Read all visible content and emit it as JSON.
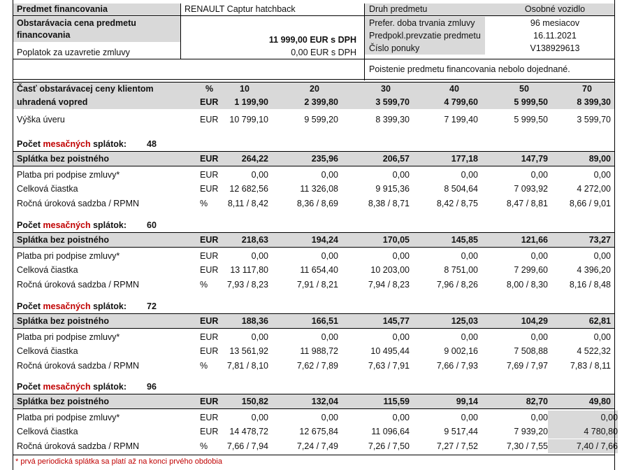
{
  "header": {
    "predmet_label": "Predmet financovania",
    "predmet_value": "RENAULT Captur hatchback",
    "druh_label": "Druh predmetu",
    "druh_value": "Osobné vozidlo",
    "cena_label_1": "Obstarávacia cena predmetu",
    "cena_label_2": "financovania",
    "cena_value": "11 999,00 EUR s DPH",
    "poplatok_label": "Poplatok za uzavretie zmluvy",
    "poplatok_value": "0,00 EUR s DPH",
    "doba_label": "Prefer. doba trvania zmluvy",
    "doba_value": "96 mesiacov",
    "prevzatie_label": "Predpokl.prevzatie predmetu",
    "prevzatie_value": "16.11.2021",
    "ponuka_label": "Číslo ponuky",
    "ponuka_value": "V138929613",
    "poistenie_note": "Poistenie predmetu financovania nebolo dojednané."
  },
  "upfront": {
    "label_1": "Časť obstarávacej ceny klientom",
    "label_2": "uhradená vopred",
    "unit_pct": "%",
    "unit_eur": "EUR",
    "percents": [
      "10",
      "20",
      "30",
      "40",
      "50",
      "70"
    ],
    "amounts": [
      "1 199,90",
      "2 399,80",
      "3 599,70",
      "4 799,60",
      "5 999,50",
      "8 399,30"
    ]
  },
  "loan": {
    "label": "Výška úveru",
    "unit": "EUR",
    "values": [
      "10 799,10",
      "9 599,20",
      "8 399,30",
      "7 199,40",
      "5 999,50",
      "3 599,70"
    ]
  },
  "count_label_prefix": "Počet ",
  "count_label_red": "mesačných",
  "count_label_suffix": " splátok:",
  "sections": [
    {
      "count": "48",
      "splatka_label": "Splátka bez poistného",
      "splatka_unit": "EUR",
      "splatka": [
        "264,22",
        "235,96",
        "206,57",
        "177,18",
        "147,79",
        "89,00"
      ],
      "platba_label": "Platba pri podpise zmluvy*",
      "platba_unit": "EUR",
      "platba": [
        "0,00",
        "0,00",
        "0,00",
        "0,00",
        "0,00",
        "0,00"
      ],
      "celkova_label": "Celková čiastka",
      "celkova_unit": "EUR",
      "celkova": [
        "12 682,56",
        "11 326,08",
        "9 915,36",
        "8 504,64",
        "7 093,92",
        "4 272,00"
      ],
      "rpmn_label": "Ročná úroková sadzba / RPMN",
      "rpmn_unit": "%",
      "rpmn": [
        "8,11 / 8,42",
        "8,36 / 8,69",
        "8,38 / 8,71",
        "8,42 / 8,75",
        "8,47 / 8,81",
        "8,66 / 9,01"
      ]
    },
    {
      "count": "60",
      "splatka_label": "Splátka bez poistného",
      "splatka_unit": "EUR",
      "splatka": [
        "218,63",
        "194,24",
        "170,05",
        "145,85",
        "121,66",
        "73,27"
      ],
      "platba_label": "Platba pri podpise zmluvy*",
      "platba_unit": "EUR",
      "platba": [
        "0,00",
        "0,00",
        "0,00",
        "0,00",
        "0,00",
        "0,00"
      ],
      "celkova_label": "Celková čiastka",
      "celkova_unit": "EUR",
      "celkova": [
        "13 117,80",
        "11 654,40",
        "10 203,00",
        "8 751,00",
        "7 299,60",
        "4 396,20"
      ],
      "rpmn_label": "Ročná úroková sadzba / RPMN",
      "rpmn_unit": "%",
      "rpmn": [
        "7,93 / 8,23",
        "7,91 / 8,21",
        "7,94 / 8,23",
        "7,96 / 8,26",
        "8,00 / 8,30",
        "8,16 / 8,48"
      ]
    },
    {
      "count": "72",
      "splatka_label": "Splátka bez poistného",
      "splatka_unit": "EUR",
      "splatka": [
        "188,36",
        "166,51",
        "145,77",
        "125,03",
        "104,29",
        "62,81"
      ],
      "platba_label": "Platba pri podpise zmluvy*",
      "platba_unit": "EUR",
      "platba": [
        "0,00",
        "0,00",
        "0,00",
        "0,00",
        "0,00",
        "0,00"
      ],
      "celkova_label": "Celková čiastka",
      "celkova_unit": "EUR",
      "celkova": [
        "13 561,92",
        "11 988,72",
        "10 495,44",
        "9 002,16",
        "7 508,88",
        "4 522,32"
      ],
      "rpmn_label": "Ročná úroková sadzba / RPMN",
      "rpmn_unit": "%",
      "rpmn": [
        "7,81 / 8,10",
        "7,62 / 7,89",
        "7,63 / 7,91",
        "7,66 / 7,93",
        "7,69 / 7,97",
        "7,83 / 8,11"
      ]
    },
    {
      "count": "96",
      "splatka_label": "Splátka bez poistného",
      "splatka_unit": "EUR",
      "splatka": [
        "150,82",
        "132,04",
        "115,59",
        "99,14",
        "82,70",
        "49,80"
      ],
      "platba_label": "Platba pri podpise zmluvy*",
      "platba_unit": "EUR",
      "platba": [
        "0,00",
        "0,00",
        "0,00",
        "0,00",
        "0,00",
        "0,00"
      ],
      "celkova_label": "Celková čiastka",
      "celkova_unit": "EUR",
      "celkova": [
        "14 478,72",
        "12 675,84",
        "11 096,64",
        "9 517,44",
        "7 939,20",
        "4 780,80"
      ],
      "rpmn_label": "Ročná úroková sadzba / RPMN",
      "rpmn_unit": "%",
      "rpmn": [
        "7,66 / 7,94",
        "7,24 / 7,49",
        "7,26 / 7,50",
        "7,27 / 7,52",
        "7,30 / 7,55",
        "7,40 / 7,66"
      ]
    }
  ],
  "footnote": "* prvá periodická splátka sa platí až na konci prvého obdobia",
  "colors": {
    "header_gray": "#d9d9d9",
    "accent_red": "#c00000"
  }
}
